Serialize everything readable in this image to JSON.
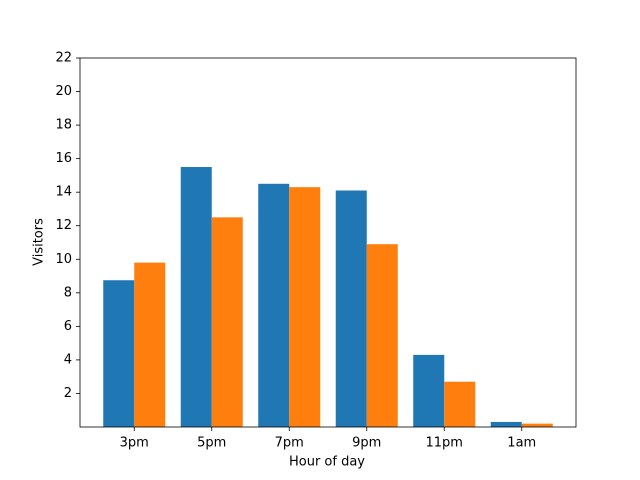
{
  "chart_data": {
    "type": "bar",
    "xlabel": "Hour of day",
    "ylabel": "Visitors",
    "categories": [
      "3pm",
      "5pm",
      "7pm",
      "9pm",
      "11pm",
      "1am"
    ],
    "series": [
      {
        "color": "#1f77b4",
        "values": [
          8.75,
          15.5,
          14.5,
          14.1,
          4.3,
          0.3
        ]
      },
      {
        "color": "#ff7f0e",
        "values": [
          9.8,
          12.5,
          14.3,
          10.9,
          2.7,
          0.2
        ]
      }
    ],
    "ylim": [
      0,
      22
    ],
    "yticks": [
      2,
      4,
      6,
      8,
      10,
      12,
      14,
      16,
      18,
      20,
      22
    ],
    "grid": false
  }
}
